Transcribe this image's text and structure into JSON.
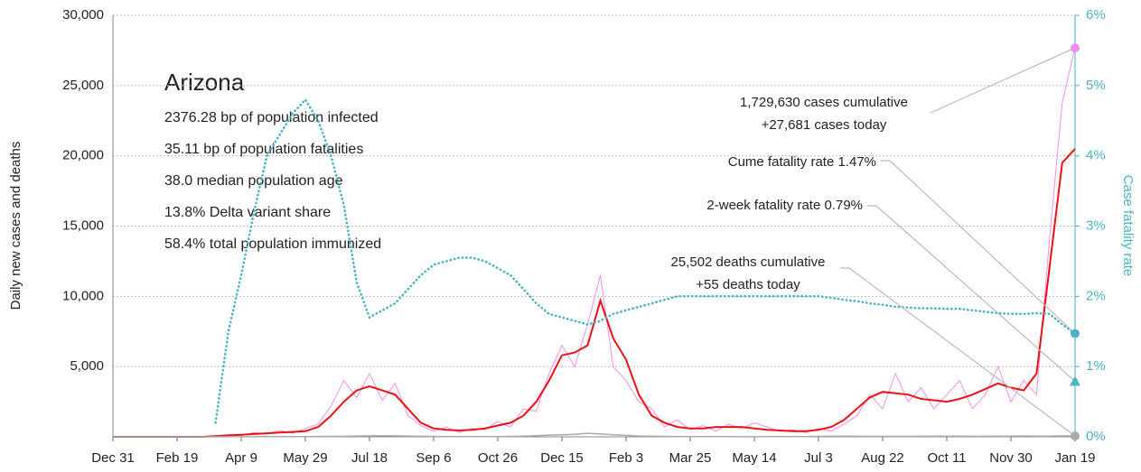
{
  "chart_data": {
    "type": "line",
    "ylabel": "Daily new cases and deaths",
    "y2label": "Case fatality rate",
    "info": {
      "title": "Arizona",
      "lines": [
        "2376.28 bp of population infected",
        "35.11 bp of population fatalities",
        "38.0 median population age",
        "13.8% Delta variant share",
        "58.4% total population immunized"
      ]
    },
    "x": [
      0,
      10,
      20,
      30,
      40,
      50,
      60,
      70,
      80,
      90,
      100,
      110,
      120,
      130,
      140,
      150,
      160,
      170,
      180,
      190,
      200,
      210,
      220,
      230,
      240,
      250,
      260,
      270,
      280,
      290,
      300,
      310,
      320,
      330,
      340,
      350,
      360,
      370,
      380,
      390,
      400,
      410,
      420,
      430,
      440,
      450,
      460,
      470,
      480,
      490,
      500,
      510,
      520,
      530,
      540,
      550,
      560,
      570,
      580,
      590,
      600,
      610,
      620,
      630,
      640,
      650,
      660,
      670,
      680,
      690,
      700,
      710,
      720,
      730,
      740,
      750
    ],
    "xlim": [
      0,
      750
    ],
    "xticks": [
      {
        "value": 0,
        "label": "Dec 31"
      },
      {
        "value": 50,
        "label": "Feb 19"
      },
      {
        "value": 100,
        "label": "Apr 9"
      },
      {
        "value": 150,
        "label": "May 29"
      },
      {
        "value": 200,
        "label": "Jul 18"
      },
      {
        "value": 250,
        "label": "Sep 6"
      },
      {
        "value": 300,
        "label": "Oct 26"
      },
      {
        "value": 350,
        "label": "Dec 15"
      },
      {
        "value": 400,
        "label": "Feb 3"
      },
      {
        "value": 450,
        "label": "Mar 25"
      },
      {
        "value": 500,
        "label": "May 14"
      },
      {
        "value": 550,
        "label": "Jul 3"
      },
      {
        "value": 600,
        "label": "Aug 22"
      },
      {
        "value": 650,
        "label": "Oct 11"
      },
      {
        "value": 700,
        "label": "Nov 30"
      },
      {
        "value": 750,
        "label": "Jan 19"
      }
    ],
    "ylim": [
      0,
      30000
    ],
    "yticks": [
      {
        "value": 5000,
        "label": "5,000"
      },
      {
        "value": 10000,
        "label": "10,000"
      },
      {
        "value": 15000,
        "label": "15,000"
      },
      {
        "value": 20000,
        "label": "20,000"
      },
      {
        "value": 25000,
        "label": "25,000"
      },
      {
        "value": 30000,
        "label": "30,000"
      }
    ],
    "y2lim": [
      0,
      6
    ],
    "y2ticks": [
      {
        "value": 0,
        "label": "0%"
      },
      {
        "value": 1,
        "label": "1%"
      },
      {
        "value": 2,
        "label": "2%"
      },
      {
        "value": 3,
        "label": "3%"
      },
      {
        "value": 4,
        "label": "4%"
      },
      {
        "value": 5,
        "label": "5%"
      },
      {
        "value": 6,
        "label": "6%"
      }
    ],
    "grid": true,
    "series": [
      {
        "color": "#f08ef0",
        "values": [
          0,
          0,
          0,
          0,
          0,
          0,
          0,
          0,
          80,
          150,
          100,
          300,
          200,
          450,
          250,
          600,
          900,
          2200,
          4000,
          2800,
          4500,
          2600,
          3800,
          1500,
          800,
          400,
          700,
          300,
          600,
          500,
          1100,
          700,
          2000,
          1800,
          4500,
          6500,
          5000,
          8000,
          11500,
          5000,
          4000,
          2500,
          2000,
          700,
          1200,
          500,
          800,
          400,
          900,
          600,
          1000,
          700,
          400,
          500,
          300,
          600,
          400,
          900,
          1500,
          3000,
          2000,
          4500,
          2500,
          3500,
          2000,
          3000,
          4000,
          2000,
          3000,
          5000,
          2500,
          4000,
          3000,
          14000,
          23800,
          27681
        ]
      },
      {
        "color": "#ee1111",
        "values": [
          0,
          0,
          0,
          0,
          0,
          0,
          0,
          0,
          50,
          100,
          150,
          200,
          250,
          300,
          350,
          400,
          700,
          1500,
          2500,
          3300,
          3600,
          3300,
          3000,
          2000,
          1000,
          600,
          500,
          450,
          500,
          600,
          800,
          1000,
          1500,
          2500,
          4000,
          5800,
          6000,
          6500,
          9700,
          7000,
          5500,
          3000,
          1500,
          1000,
          700,
          600,
          600,
          700,
          700,
          700,
          600,
          500,
          450,
          400,
          400,
          500,
          700,
          1200,
          2000,
          2800,
          3200,
          3100,
          3000,
          2700,
          2600,
          2500,
          2700,
          3000,
          3400,
          3800,
          3500,
          3300,
          4500,
          12000,
          19500,
          20500
        ]
      },
      {
        "color": "#aaaaaa",
        "values": [
          0,
          0,
          0,
          0,
          0,
          0,
          0,
          0,
          2,
          5,
          5,
          8,
          10,
          10,
          15,
          20,
          25,
          30,
          40,
          60,
          70,
          80,
          70,
          60,
          40,
          30,
          20,
          15,
          12,
          15,
          20,
          30,
          50,
          80,
          120,
          150,
          180,
          250,
          200,
          150,
          100,
          60,
          40,
          30,
          20,
          15,
          12,
          10,
          10,
          8,
          8,
          10,
          12,
          15,
          20,
          30,
          40,
          45,
          40,
          35,
          30,
          30,
          35,
          40,
          45,
          50,
          45,
          40,
          40,
          45,
          50,
          60,
          45,
          50,
          70,
          55
        ]
      },
      {
        "color": "#4ab3c4",
        "axis": "y2",
        "values": [
          null,
          null,
          null,
          null,
          null,
          null,
          null,
          null,
          0.2,
          1.5,
          2.3,
          3.2,
          4.0,
          4.3,
          4.6,
          4.8,
          4.5,
          4.0,
          3.3,
          2.2,
          1.7,
          1.8,
          1.9,
          2.1,
          2.3,
          2.45,
          2.5,
          2.55,
          2.55,
          2.5,
          2.4,
          2.3,
          2.1,
          1.9,
          1.75,
          1.7,
          1.65,
          1.6,
          1.65,
          1.75,
          1.8,
          1.85,
          1.9,
          1.95,
          2.0,
          2.0,
          2.0,
          2.0,
          2.0,
          2.0,
          2.0,
          2.0,
          2.0,
          2.0,
          2.0,
          2.0,
          1.98,
          1.95,
          1.93,
          1.9,
          1.88,
          1.85,
          1.84,
          1.83,
          1.83,
          1.82,
          1.82,
          1.8,
          1.78,
          1.76,
          1.75,
          1.75,
          1.76,
          1.75,
          1.6,
          1.47
        ]
      }
    ],
    "two_week_fatality_rate": 0.79,
    "annotations": [
      {
        "lines": [
          "1,729,630 cases cumulative",
          "+27,681 cases today"
        ]
      },
      {
        "lines": [
          "Cume fatality rate 1.47%"
        ]
      },
      {
        "lines": [
          "2-week fatality rate 0.79%"
        ]
      },
      {
        "lines": [
          "25,502 deaths cumulative",
          "+55 deaths today"
        ]
      }
    ]
  }
}
